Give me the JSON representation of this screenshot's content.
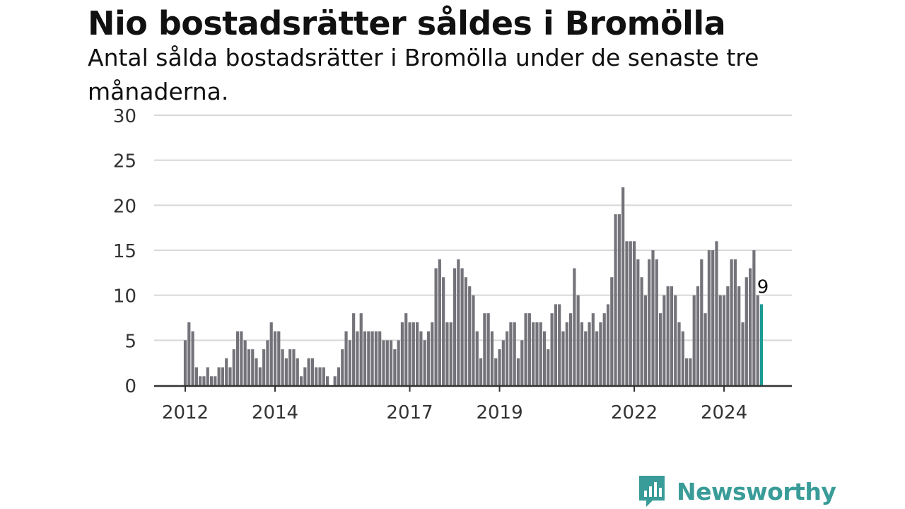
{
  "title": "Nio bostadsrätter såldes i Bromölla",
  "subtitle": "Antal sålda bostadsrätter i Bromölla under de senaste tre månaderna.",
  "brand": {
    "name": "Newsworthy",
    "logo_icon": "bar-chart-speech-bubble-icon",
    "color": "#3a9c98"
  },
  "colors": {
    "bar": "#74737a",
    "highlight": "#1a9a95",
    "grid": "#d8d8d8",
    "axis": "#333333"
  },
  "chart_data": {
    "type": "bar",
    "title": "Nio bostadsrätter såldes i Bromölla",
    "subtitle": "Antal sålda bostadsrätter i Bromölla under de senaste tre månaderna.",
    "xlabel": "",
    "ylabel": "",
    "ylim": [
      0,
      30
    ],
    "yticks": [
      0,
      5,
      10,
      15,
      20,
      25,
      30
    ],
    "grid": true,
    "frequency": "monthly",
    "start_month": "2012-01",
    "xtick_labels": [
      "2012",
      "2014",
      "2017",
      "2019",
      "2022",
      "2024"
    ],
    "values": [
      5,
      7,
      6,
      2,
      1,
      1,
      2,
      1,
      1,
      2,
      2,
      3,
      2,
      4,
      6,
      6,
      5,
      4,
      4,
      3,
      2,
      4,
      5,
      7,
      6,
      6,
      4,
      3,
      4,
      4,
      3,
      1,
      2,
      3,
      3,
      2,
      2,
      2,
      1,
      0,
      1,
      2,
      4,
      6,
      5,
      8,
      6,
      8,
      6,
      6,
      6,
      6,
      6,
      5,
      5,
      5,
      4,
      5,
      7,
      8,
      7,
      7,
      7,
      6,
      5,
      6,
      7,
      13,
      14,
      12,
      7,
      7,
      13,
      14,
      13,
      12,
      11,
      10,
      6,
      3,
      8,
      8,
      6,
      3,
      4,
      5,
      6,
      7,
      7,
      3,
      5,
      8,
      8,
      7,
      7,
      7,
      6,
      4,
      8,
      9,
      9,
      6,
      7,
      8,
      13,
      10,
      7,
      6,
      7,
      8,
      6,
      7,
      8,
      9,
      12,
      19,
      19,
      22,
      16,
      16,
      16,
      14,
      12,
      10,
      14,
      15,
      14,
      8,
      10,
      11,
      11,
      10,
      7,
      6,
      3,
      3,
      10,
      11,
      14,
      8,
      15,
      15,
      16,
      10,
      10,
      11,
      14,
      14,
      11,
      7,
      12,
      13,
      15,
      10,
      9
    ],
    "highlight": {
      "index": 154,
      "value": 9,
      "label": "9"
    }
  }
}
